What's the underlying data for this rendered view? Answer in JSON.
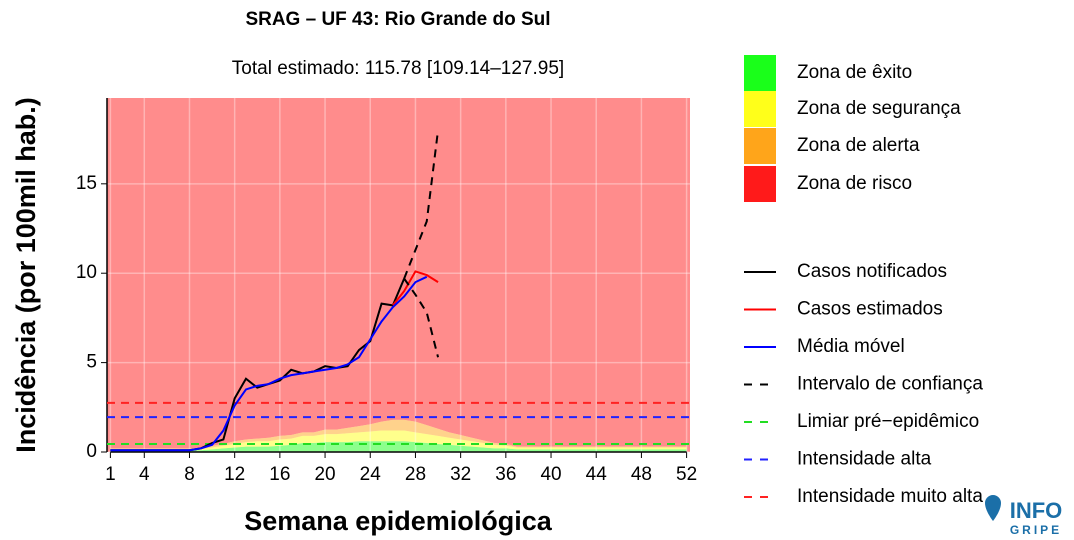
{
  "chart_data": {
    "type": "line",
    "title": "SRAG – UF 43: Rio Grande do Sul",
    "subtitle": "Total estimado: 115.78 [109.14–127.95]",
    "x_label": "Semana epidemiológica",
    "y_label": "Incidência (por 100mil hab.)",
    "xlim": [
      0.7,
      52.3
    ],
    "ylim": [
      0,
      19.8
    ],
    "xticks": [
      1,
      4,
      8,
      12,
      16,
      20,
      24,
      28,
      32,
      36,
      40,
      44,
      48,
      52
    ],
    "yticks": [
      0,
      5,
      10,
      15
    ],
    "grid": true,
    "x": [
      1,
      2,
      3,
      4,
      5,
      6,
      7,
      8,
      9,
      10,
      11,
      12,
      13,
      14,
      15,
      16,
      17,
      18,
      19,
      20,
      21,
      22,
      23,
      24,
      25,
      26,
      27,
      28,
      29,
      30,
      31,
      32,
      33,
      34,
      35,
      36,
      37,
      38,
      39,
      40,
      41,
      42,
      43,
      44,
      45,
      46,
      47,
      48,
      49,
      50,
      51,
      52
    ],
    "zones": [
      {
        "name": "Zona de êxito",
        "color": "#1aff1a",
        "values": [
          0.1,
          0.1,
          0.1,
          0.1,
          0.1,
          0.1,
          0.1,
          0.1,
          0.1,
          0.15,
          0.2,
          0.25,
          0.3,
          0.3,
          0.3,
          0.35,
          0.4,
          0.5,
          0.5,
          0.55,
          0.55,
          0.55,
          0.6,
          0.6,
          0.6,
          0.6,
          0.6,
          0.55,
          0.5,
          0.45,
          0.4,
          0.35,
          0.3,
          0.25,
          0.2,
          0.2,
          0.15,
          0.15,
          0.15,
          0.15,
          0.15,
          0.15,
          0.15,
          0.15,
          0.15,
          0.15,
          0.15,
          0.15,
          0.15,
          0.15,
          0.15,
          0.15
        ]
      },
      {
        "name": "Zona de segurança",
        "color": "#ffff1a",
        "values": [
          0.05,
          0.05,
          0.05,
          0.05,
          0.05,
          0.05,
          0.05,
          0.05,
          0.05,
          0.1,
          0.15,
          0.2,
          0.25,
          0.3,
          0.3,
          0.35,
          0.35,
          0.4,
          0.4,
          0.45,
          0.45,
          0.5,
          0.5,
          0.55,
          0.6,
          0.6,
          0.6,
          0.55,
          0.5,
          0.45,
          0.4,
          0.35,
          0.3,
          0.25,
          0.2,
          0.15,
          0.1,
          0.1,
          0.1,
          0.1,
          0.1,
          0.1,
          0.1,
          0.1,
          0.1,
          0.1,
          0.1,
          0.1,
          0.1,
          0.1,
          0.1,
          0.1
        ]
      },
      {
        "name": "Zona de alerta",
        "color": "#ffa51a",
        "values": [
          0.05,
          0.05,
          0.05,
          0.05,
          0.05,
          0.05,
          0.05,
          0.05,
          0.05,
          0.1,
          0.1,
          0.15,
          0.15,
          0.15,
          0.2,
          0.2,
          0.2,
          0.2,
          0.2,
          0.25,
          0.25,
          0.3,
          0.35,
          0.4,
          0.5,
          0.6,
          0.6,
          0.6,
          0.5,
          0.4,
          0.3,
          0.25,
          0.2,
          0.15,
          0.1,
          0.1,
          0.05,
          0.05,
          0.05,
          0.05,
          0.05,
          0.05,
          0.05,
          0.05,
          0.05,
          0.05,
          0.05,
          0.05,
          0.05,
          0.05,
          0.05,
          0.05
        ]
      },
      {
        "name": "Zona de risco",
        "color": "#ff1a1a"
      }
    ],
    "series": [
      {
        "name": "Casos notificados",
        "color": "#000000",
        "dash": false,
        "x": [
          1,
          2,
          3,
          4,
          5,
          6,
          7,
          8,
          9,
          10,
          11,
          12,
          13,
          14,
          15,
          16,
          17,
          18,
          19,
          20,
          21,
          22,
          23,
          24,
          25,
          26,
          27
        ],
        "values": [
          0.1,
          0.1,
          0.1,
          0.1,
          0.1,
          0.1,
          0.1,
          0.1,
          0.2,
          0.5,
          0.7,
          3.0,
          4.1,
          3.6,
          3.8,
          4.0,
          4.6,
          4.4,
          4.5,
          4.8,
          4.7,
          4.8,
          5.7,
          6.2,
          8.3,
          8.2,
          9.7
        ]
      },
      {
        "name": "Casos estimados",
        "color": "#ff0000",
        "dash": false,
        "x": [
          26,
          27,
          28,
          29,
          30
        ],
        "values": [
          8.2,
          9.0,
          10.1,
          9.9,
          9.5
        ]
      },
      {
        "name": "Média móvel",
        "color": "#0000ff",
        "dash": false,
        "x": [
          1,
          2,
          3,
          4,
          5,
          6,
          7,
          8,
          9,
          10,
          11,
          12,
          13,
          14,
          15,
          16,
          17,
          18,
          19,
          20,
          21,
          22,
          23,
          24,
          25,
          26,
          27,
          28,
          29
        ],
        "values": [
          0.1,
          0.1,
          0.1,
          0.1,
          0.1,
          0.1,
          0.1,
          0.1,
          0.2,
          0.4,
          1.2,
          2.6,
          3.5,
          3.7,
          3.8,
          4.1,
          4.3,
          4.4,
          4.5,
          4.6,
          4.7,
          4.9,
          5.3,
          6.3,
          7.3,
          8.1,
          8.7,
          9.5,
          9.8
        ]
      },
      {
        "name": "Intervalo de confiança",
        "color": "#000000",
        "dash": true,
        "x": [
          27,
          28,
          29,
          30
        ],
        "values": [
          9.7,
          11.3,
          12.9,
          18.0
        ],
        "lower": [
          9.7,
          8.8,
          7.8,
          5.3
        ]
      }
    ],
    "thresholds": [
      {
        "name": "Limiar pré−epidêmico",
        "color": "#22dd22",
        "value": 0.45
      },
      {
        "name": "Intensidade alta",
        "color": "#2222ff",
        "value": 1.95
      },
      {
        "name": "Intensidade muito alta",
        "color": "#ff2222",
        "value": 2.75
      }
    ],
    "logo": {
      "top": "INFO",
      "bottom": "GRIPE"
    }
  }
}
